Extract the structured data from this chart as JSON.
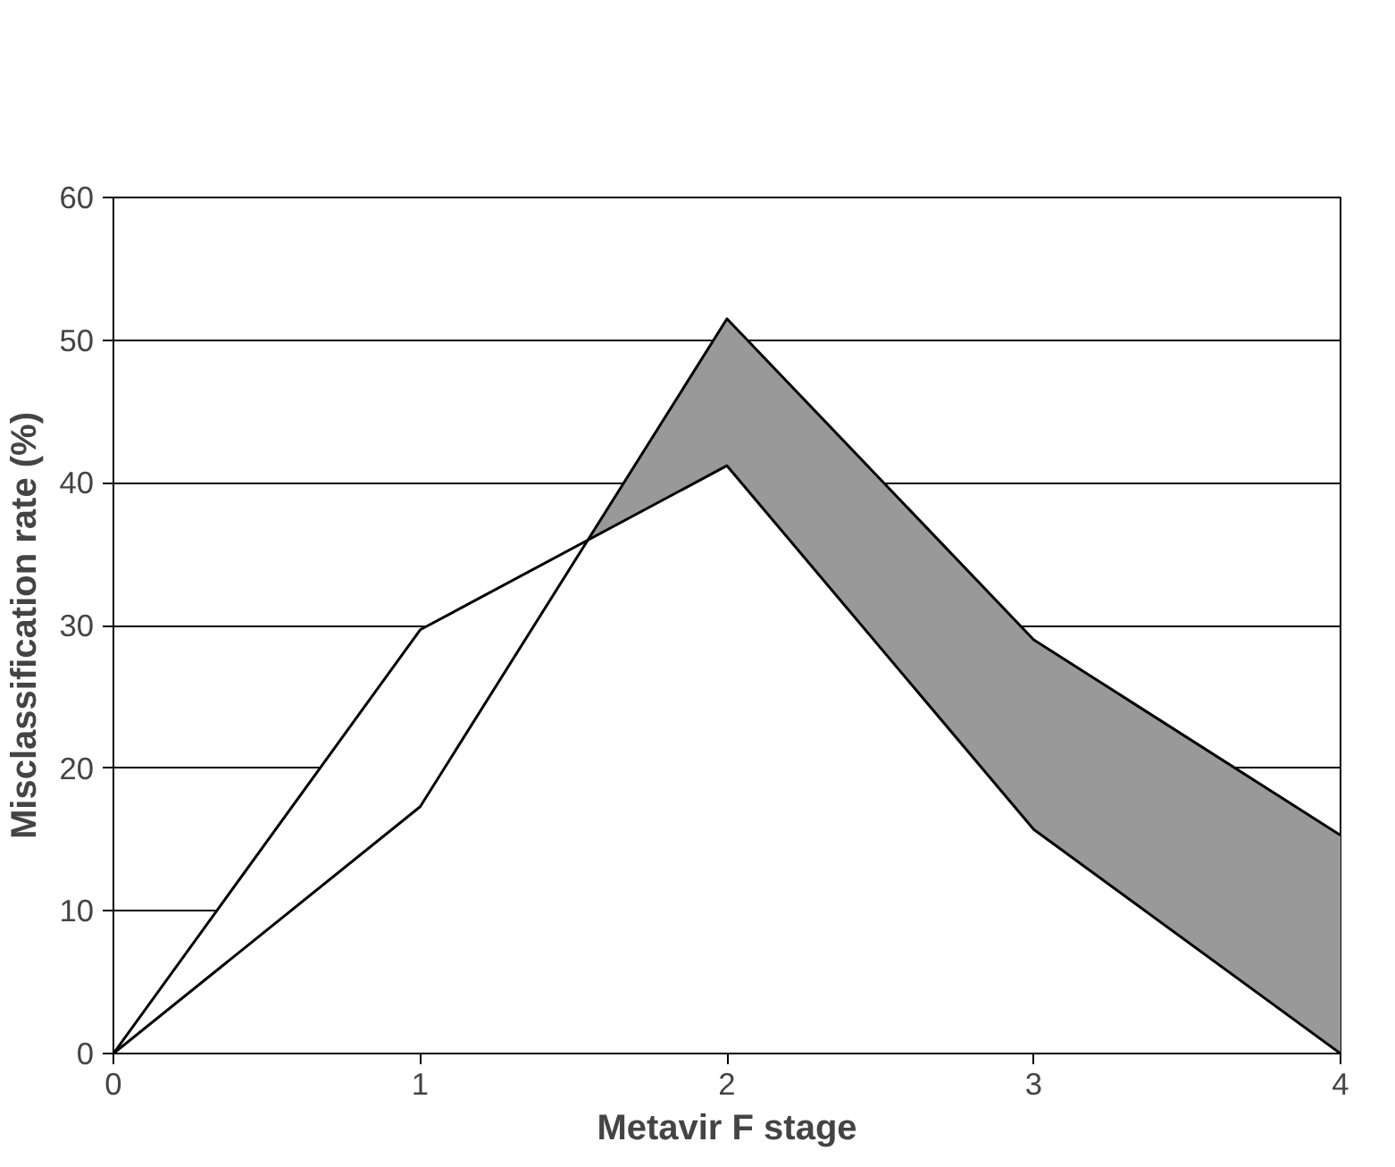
{
  "chart_data": {
    "type": "area",
    "xlabel": "Metavir F stage",
    "ylabel": "Misclassification rate (%)",
    "x": [
      0,
      1,
      2,
      3,
      4
    ],
    "series": [
      {
        "color": "#999999",
        "values": [
          0,
          17.3,
          51.5,
          29,
          15.3
        ]
      },
      {
        "color": "#ffffff",
        "values": [
          0,
          29.7,
          41.2,
          15.7,
          0
        ]
      }
    ],
    "xlim": [
      0,
      4
    ],
    "ylim": [
      0,
      60
    ],
    "xticks": [
      0,
      1,
      2,
      3,
      4
    ],
    "yticks": [
      0,
      10,
      20,
      30,
      40,
      50,
      60
    ],
    "grid": "y"
  }
}
